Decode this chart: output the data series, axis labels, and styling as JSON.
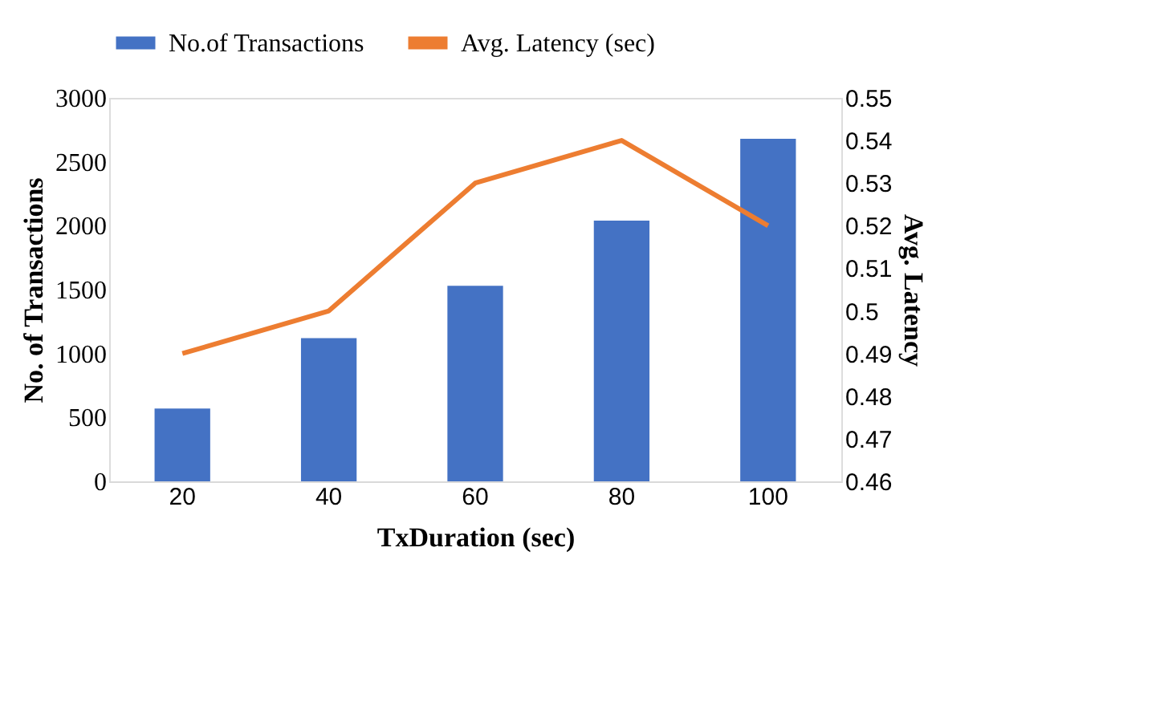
{
  "chart_data": {
    "type": "bar",
    "xlabel": "TxDuration (sec)",
    "ylabel": "No. of Transactions",
    "y2label": "Avg. Latency",
    "categories": [
      "20",
      "40",
      "60",
      "80",
      "100"
    ],
    "series": [
      {
        "name": "No.of Transactions",
        "color": "#4472c4",
        "values": [
          570,
          1120,
          1530,
          2040,
          2680
        ]
      },
      {
        "name": "Avg. Latency (sec)",
        "type": "line",
        "axis": "y2",
        "color": "#ed7d31",
        "values": [
          0.49,
          0.5,
          0.53,
          0.54,
          0.52
        ]
      }
    ],
    "ylim": [
      0,
      3000
    ],
    "yticks": [
      0,
      500,
      1000,
      1500,
      2000,
      2500,
      3000
    ],
    "y2lim": [
      0.46,
      0.55
    ],
    "y2ticks": [
      0.46,
      0.47,
      0.48,
      0.49,
      0.5,
      0.51,
      0.52,
      0.53,
      0.54,
      0.55
    ],
    "legend": "top"
  }
}
